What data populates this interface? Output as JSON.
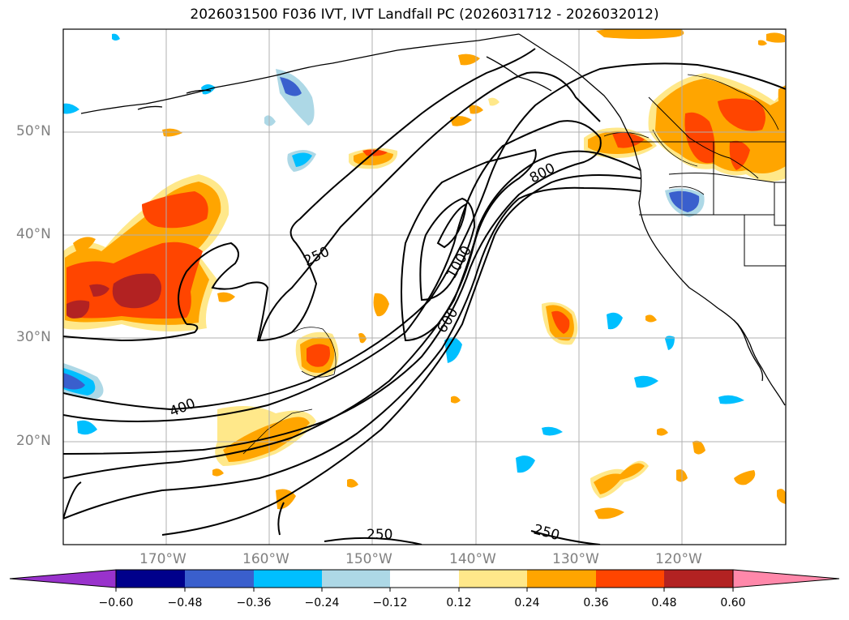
{
  "title": "2026031500 F036 IVT, IVT Landfall PC (2026031712 - 2026032012)",
  "map": {
    "lat_labels": [
      "50°N",
      "40°N",
      "30°N",
      "20°N"
    ],
    "lon_labels": [
      "170°W",
      "160°W",
      "150°W",
      "140°W",
      "130°W",
      "120°W"
    ],
    "contour_labels": [
      "250",
      "250",
      "250",
      "400",
      "600",
      "800",
      "1000"
    ],
    "gridlines": true
  },
  "colorbar": {
    "ticks": [
      "−0.60",
      "−0.48",
      "−0.36",
      "−0.24",
      "−0.12",
      "0.12",
      "0.24",
      "0.36",
      "0.48",
      "0.60"
    ],
    "colors": [
      "#9932cc",
      "#00008b",
      "#3a5fcd",
      "#00bfff",
      "#add8e6",
      "#ffffff",
      "#ffe88a",
      "#ffa500",
      "#ff4500",
      "#b22222",
      "#ff88aa"
    ]
  }
}
